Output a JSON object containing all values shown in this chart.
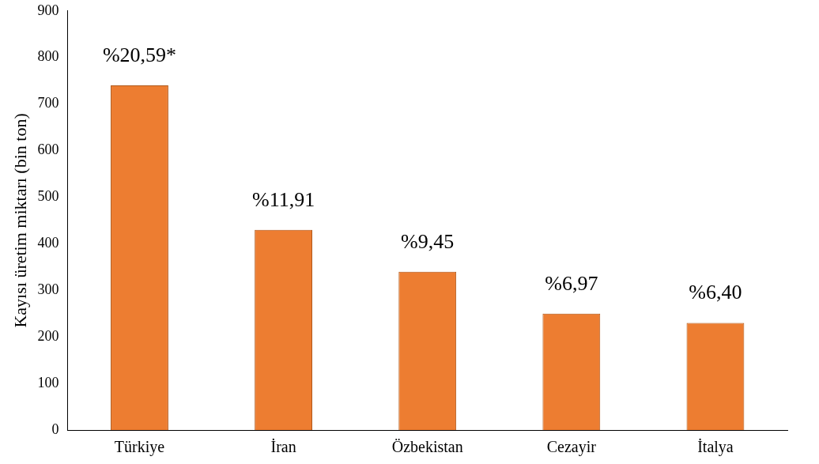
{
  "chart_data": {
    "type": "bar",
    "ylabel": "Kayısı üretim miktarı (bin ton)",
    "categories": [
      "Türkiye",
      "İran",
      "Özbekistan",
      "Cezayir",
      "İtalya"
    ],
    "values": [
      740,
      430,
      340,
      250,
      230
    ],
    "color": "#ed7d31",
    "annotations": [
      {
        "text": "%20,59*",
        "x": "Türkiye",
        "y": 740
      },
      {
        "text": "%11,91",
        "x": "İran",
        "y": 430
      },
      {
        "text": "%9,45",
        "x": "Özbekistan",
        "y": 340
      },
      {
        "text": "%6,97",
        "x": "Cezayir",
        "y": 250
      },
      {
        "text": "%6,40",
        "x": "İtalya",
        "y": 230
      }
    ],
    "ylim": [
      0,
      900
    ],
    "yticks": [
      0,
      100,
      200,
      300,
      400,
      500,
      600,
      700,
      800,
      900
    ],
    "grid": false,
    "legend": false
  }
}
